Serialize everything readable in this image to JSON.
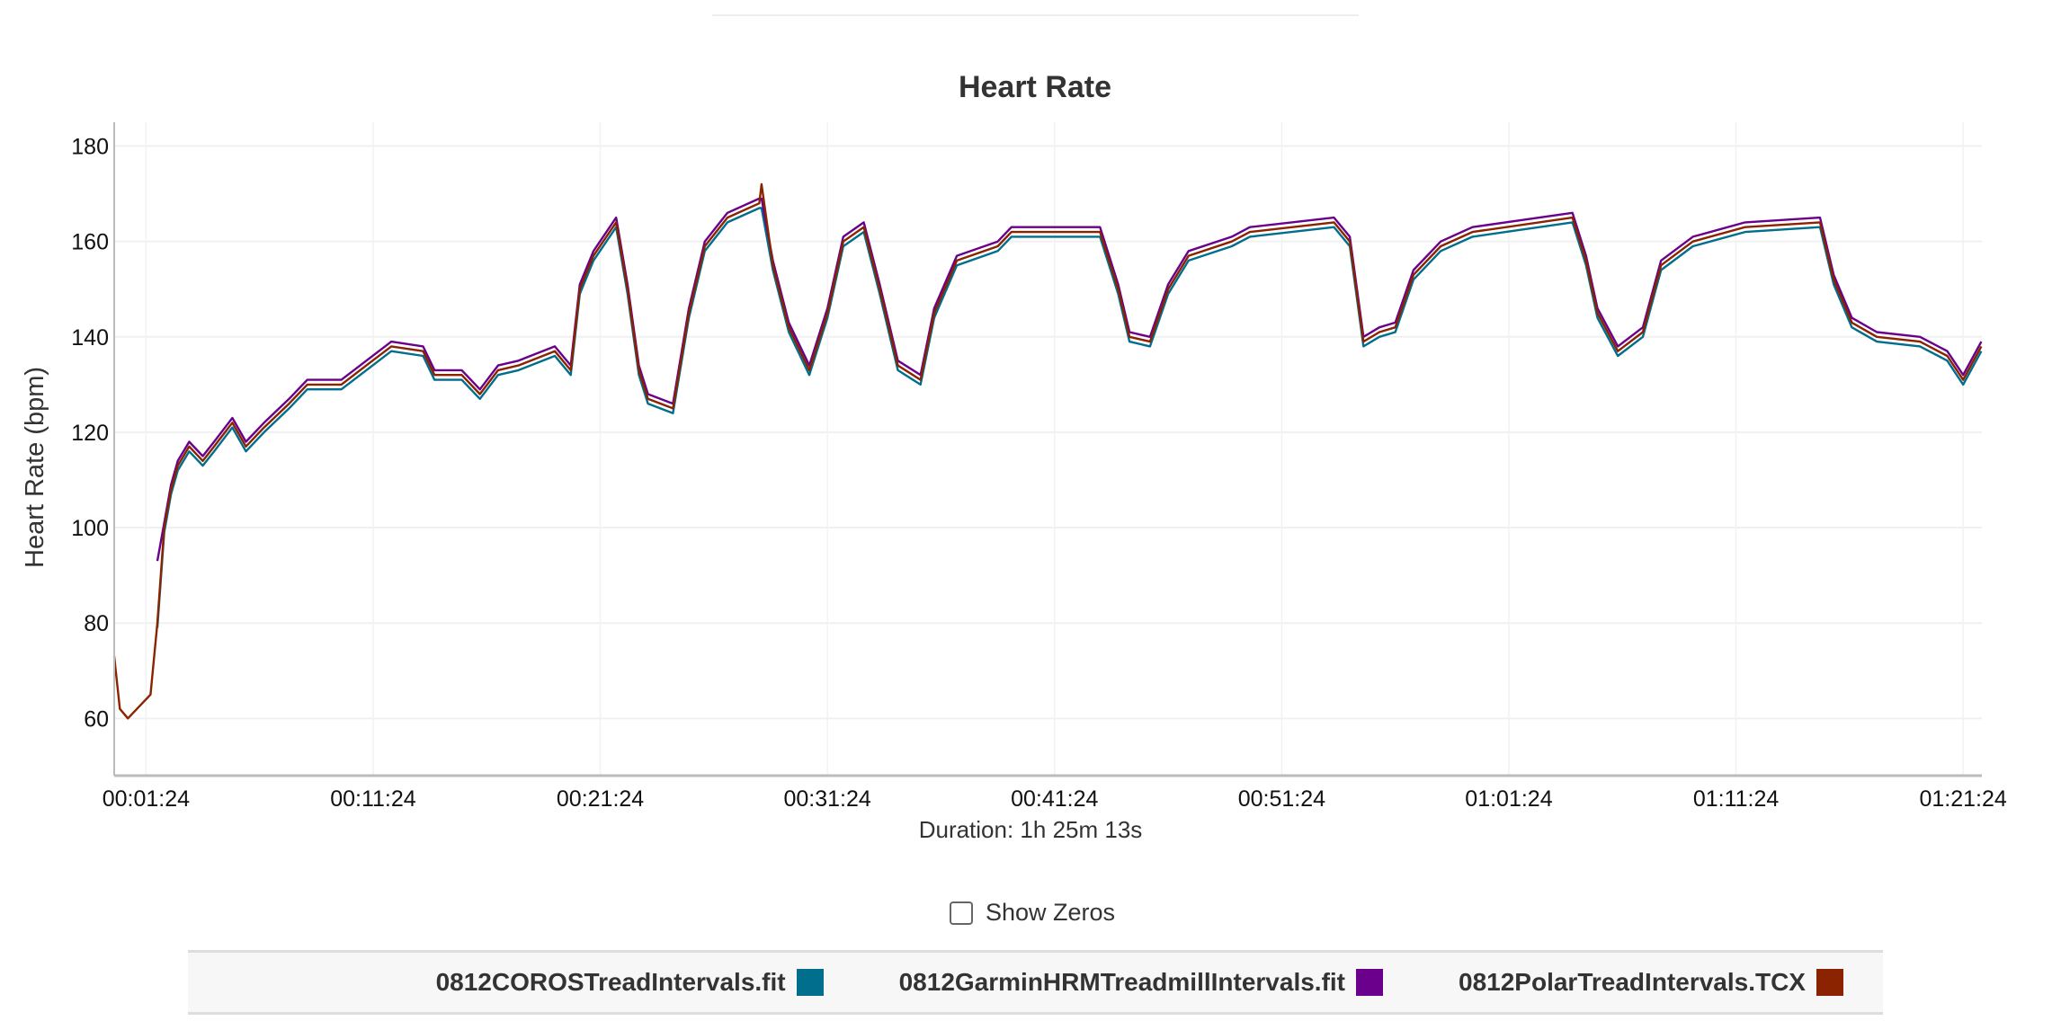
{
  "chart_data": {
    "type": "line",
    "title": "Heart Rate",
    "ylabel": "Heart Rate (bpm)",
    "xlabel": "Duration: 1h 25m 13s",
    "ylim": [
      48,
      185
    ],
    "yticks": [
      "60",
      "80",
      "100",
      "120",
      "140",
      "160",
      "180"
    ],
    "xticks": [
      "00:01:24",
      "00:11:24",
      "00:21:24",
      "00:31:24",
      "00:41:24",
      "00:51:24",
      "01:01:24",
      "01:11:24",
      "01:21:24"
    ],
    "grid": true,
    "legend_position": "bottom",
    "x": [
      "00:00:00",
      "00:00:15",
      "00:00:36",
      "00:01:00",
      "00:01:36",
      "00:01:54",
      "00:02:12",
      "00:02:30",
      "00:02:48",
      "00:03:18",
      "00:03:54",
      "00:04:24",
      "00:05:12",
      "00:05:48",
      "00:06:36",
      "00:07:42",
      "00:08:30",
      "00:10:00",
      "00:11:06",
      "00:12:12",
      "00:13:36",
      "00:14:06",
      "00:15:18",
      "00:16:06",
      "00:16:54",
      "00:17:48",
      "00:19:24",
      "00:20:06",
      "00:20:30",
      "00:21:06",
      "00:22:06",
      "00:22:36",
      "00:23:06",
      "00:23:30",
      "00:24:36",
      "00:25:18",
      "00:26:00",
      "00:27:00",
      "00:28:24",
      "00:28:30",
      "00:29:00",
      "00:29:42",
      "00:30:36",
      "00:31:24",
      "00:32:06",
      "00:33:00",
      "00:33:42",
      "00:34:30",
      "00:35:30",
      "00:36:06",
      "00:37:06",
      "00:38:54",
      "00:39:30",
      "00:43:24",
      "00:44:12",
      "00:44:42",
      "00:45:36",
      "00:46:24",
      "00:47:18",
      "00:49:12",
      "00:50:00",
      "00:53:42",
      "00:54:24",
      "00:55:00",
      "00:55:42",
      "00:56:24",
      "00:57:12",
      "00:58:24",
      "00:59:48",
      "01:04:12",
      "01:04:48",
      "01:05:18",
      "01:06:12",
      "01:07:18",
      "01:08:06",
      "01:09:30",
      "01:11:48",
      "01:15:06",
      "01:15:42",
      "01:16:30",
      "01:17:36",
      "01:19:30",
      "01:20:42",
      "01:21:24",
      "01:22:12"
    ],
    "series": [
      {
        "name": "0812COROSTreadIntervals.fit",
        "color": "#006e8c",
        "values": [
          null,
          null,
          null,
          null,
          null,
          79,
          99,
          107,
          112,
          116,
          113,
          116,
          121,
          116,
          120,
          125,
          129,
          129,
          133,
          137,
          136,
          131,
          131,
          127,
          132,
          133,
          136,
          132,
          149,
          156,
          163,
          149,
          132,
          126,
          124,
          144,
          158,
          164,
          167,
          167,
          154,
          141,
          132,
          144,
          159,
          162,
          149,
          133,
          130,
          144,
          155,
          158,
          161,
          161,
          149,
          139,
          138,
          149,
          156,
          159,
          161,
          163,
          159,
          138,
          140,
          141,
          152,
          158,
          161,
          164,
          155,
          144,
          136,
          140,
          154,
          159,
          162,
          163,
          151,
          142,
          139,
          138,
          135,
          130,
          137
        ]
      },
      {
        "name": "0812GarminHRMTreadmillIntervals.fit",
        "color": "#6a008c",
        "values": [
          null,
          null,
          null,
          null,
          null,
          93,
          101,
          109,
          114,
          118,
          115,
          118,
          123,
          118,
          122,
          127,
          131,
          131,
          135,
          139,
          138,
          133,
          133,
          129,
          134,
          135,
          138,
          134,
          151,
          158,
          165,
          151,
          134,
          128,
          126,
          146,
          160,
          166,
          169,
          169,
          156,
          143,
          134,
          146,
          161,
          164,
          151,
          135,
          132,
          146,
          157,
          160,
          163,
          163,
          151,
          141,
          140,
          151,
          158,
          161,
          163,
          165,
          161,
          140,
          142,
          143,
          154,
          160,
          163,
          166,
          157,
          146,
          138,
          142,
          156,
          161,
          164,
          165,
          153,
          144,
          141,
          140,
          137,
          132,
          139
        ]
      },
      {
        "name": "0812PolarTreadIntervals.TCX",
        "color": "#8b2300",
        "values": [
          73,
          62,
          60,
          62,
          65,
          80,
          100,
          108,
          113,
          117,
          114,
          117,
          122,
          117,
          121,
          126,
          130,
          130,
          134,
          138,
          137,
          132,
          132,
          128,
          133,
          134,
          137,
          133,
          150,
          157,
          164,
          150,
          133,
          127,
          125,
          145,
          159,
          165,
          168,
          172,
          155,
          142,
          133,
          145,
          160,
          163,
          150,
          134,
          131,
          145,
          156,
          159,
          162,
          162,
          150,
          140,
          139,
          150,
          157,
          160,
          162,
          164,
          160,
          139,
          141,
          142,
          153,
          159,
          162,
          165,
          156,
          145,
          137,
          141,
          155,
          160,
          163,
          164,
          152,
          143,
          140,
          139,
          136,
          131,
          138
        ]
      }
    ]
  },
  "controls": {
    "show_zeros_label": "Show Zeros",
    "show_zeros_checked": false
  }
}
